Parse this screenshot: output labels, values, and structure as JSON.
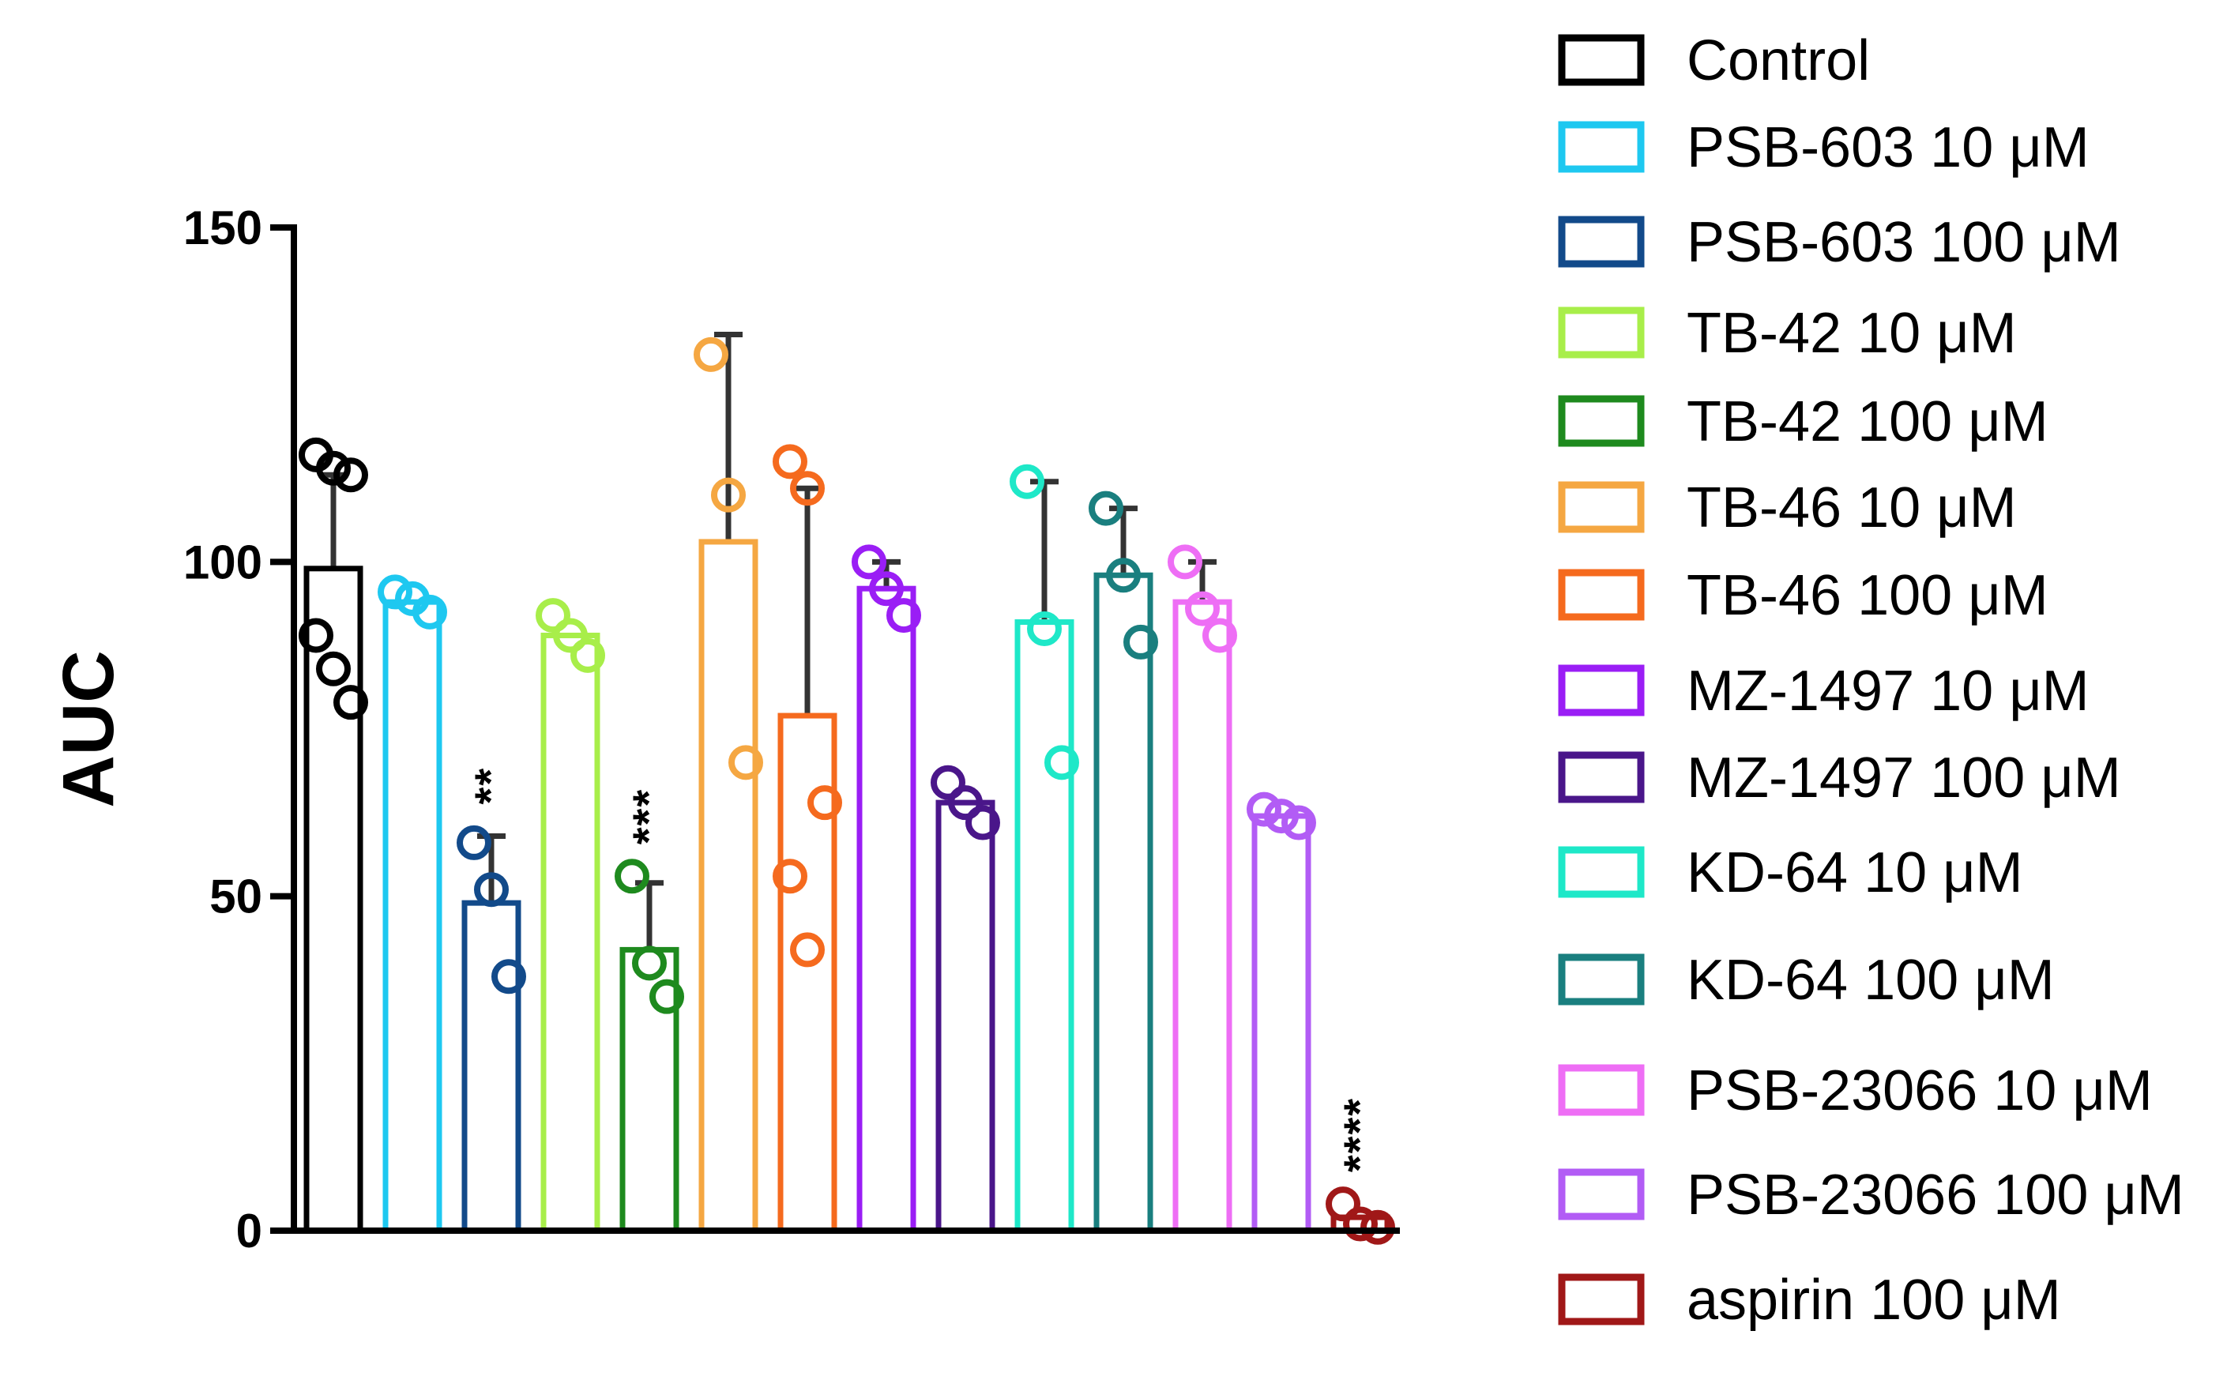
{
  "chart_data": {
    "type": "bar",
    "title": "",
    "xlabel": "",
    "ylabel": "AUC",
    "ylim": [
      0,
      150
    ],
    "yticks": [
      0,
      50,
      100,
      150
    ],
    "legend_position": "right",
    "series": [
      {
        "name": "Control",
        "color": "#000000",
        "mean": 99,
        "sd_upper": 113,
        "points": [
          116,
          114,
          113,
          89,
          84,
          79
        ],
        "significance": ""
      },
      {
        "name": "PSB-603 10 μM",
        "color": "#1ec8f0",
        "mean": 94,
        "sd_upper": null,
        "points": [
          95.5,
          94.5,
          92.5
        ],
        "significance": ""
      },
      {
        "name": "PSB-603 100 μM",
        "color": "#124a8a",
        "mean": 49,
        "sd_upper": 59,
        "points": [
          58,
          51,
          38
        ],
        "significance": "**"
      },
      {
        "name": "TB-42 10 μM",
        "color": "#a8ee4a",
        "mean": 89,
        "sd_upper": null,
        "points": [
          92,
          89,
          86
        ],
        "significance": ""
      },
      {
        "name": "TB-42 100 μM",
        "color": "#1e8a1e",
        "mean": 42,
        "sd_upper": 52,
        "points": [
          53,
          40,
          35
        ],
        "significance": "***"
      },
      {
        "name": "TB-46 10 μM",
        "color": "#f5a742",
        "mean": 103,
        "sd_upper": 134,
        "points": [
          131,
          110,
          70
        ],
        "significance": ""
      },
      {
        "name": "TB-46 100 μM",
        "color": "#f56a1e",
        "mean": 77,
        "sd_upper": 111,
        "points": [
          115,
          111,
          64,
          53,
          42
        ],
        "significance": ""
      },
      {
        "name": "MZ-1497 10 μM",
        "color": "#9a1ef5",
        "mean": 96,
        "sd_upper": 100,
        "points": [
          100,
          96,
          92
        ],
        "significance": ""
      },
      {
        "name": "MZ-1497 100 μM",
        "color": "#4a168a",
        "mean": 64,
        "sd_upper": null,
        "points": [
          67,
          64,
          61
        ],
        "significance": ""
      },
      {
        "name": "KD-64 10 μM",
        "color": "#1ee8c8",
        "mean": 91,
        "sd_upper": 112,
        "points": [
          112,
          90,
          70
        ],
        "significance": ""
      },
      {
        "name": "KD-64 100 μM",
        "color": "#1a7f7f",
        "mean": 98,
        "sd_upper": 108,
        "points": [
          108,
          98,
          88
        ],
        "significance": ""
      },
      {
        "name": "PSB-23066 10 μM",
        "color": "#ee6ef5",
        "mean": 94,
        "sd_upper": 100,
        "points": [
          100,
          93,
          89
        ],
        "significance": ""
      },
      {
        "name": "PSB-23066 100 μM",
        "color": "#b25cf5",
        "mean": 62,
        "sd_upper": null,
        "points": [
          63,
          62,
          61
        ],
        "significance": ""
      },
      {
        "name": "aspirin 100 μM",
        "color": "#a01818",
        "mean": 2,
        "sd_upper": null,
        "points": [
          4,
          1,
          0.5
        ],
        "significance": "****"
      }
    ]
  }
}
